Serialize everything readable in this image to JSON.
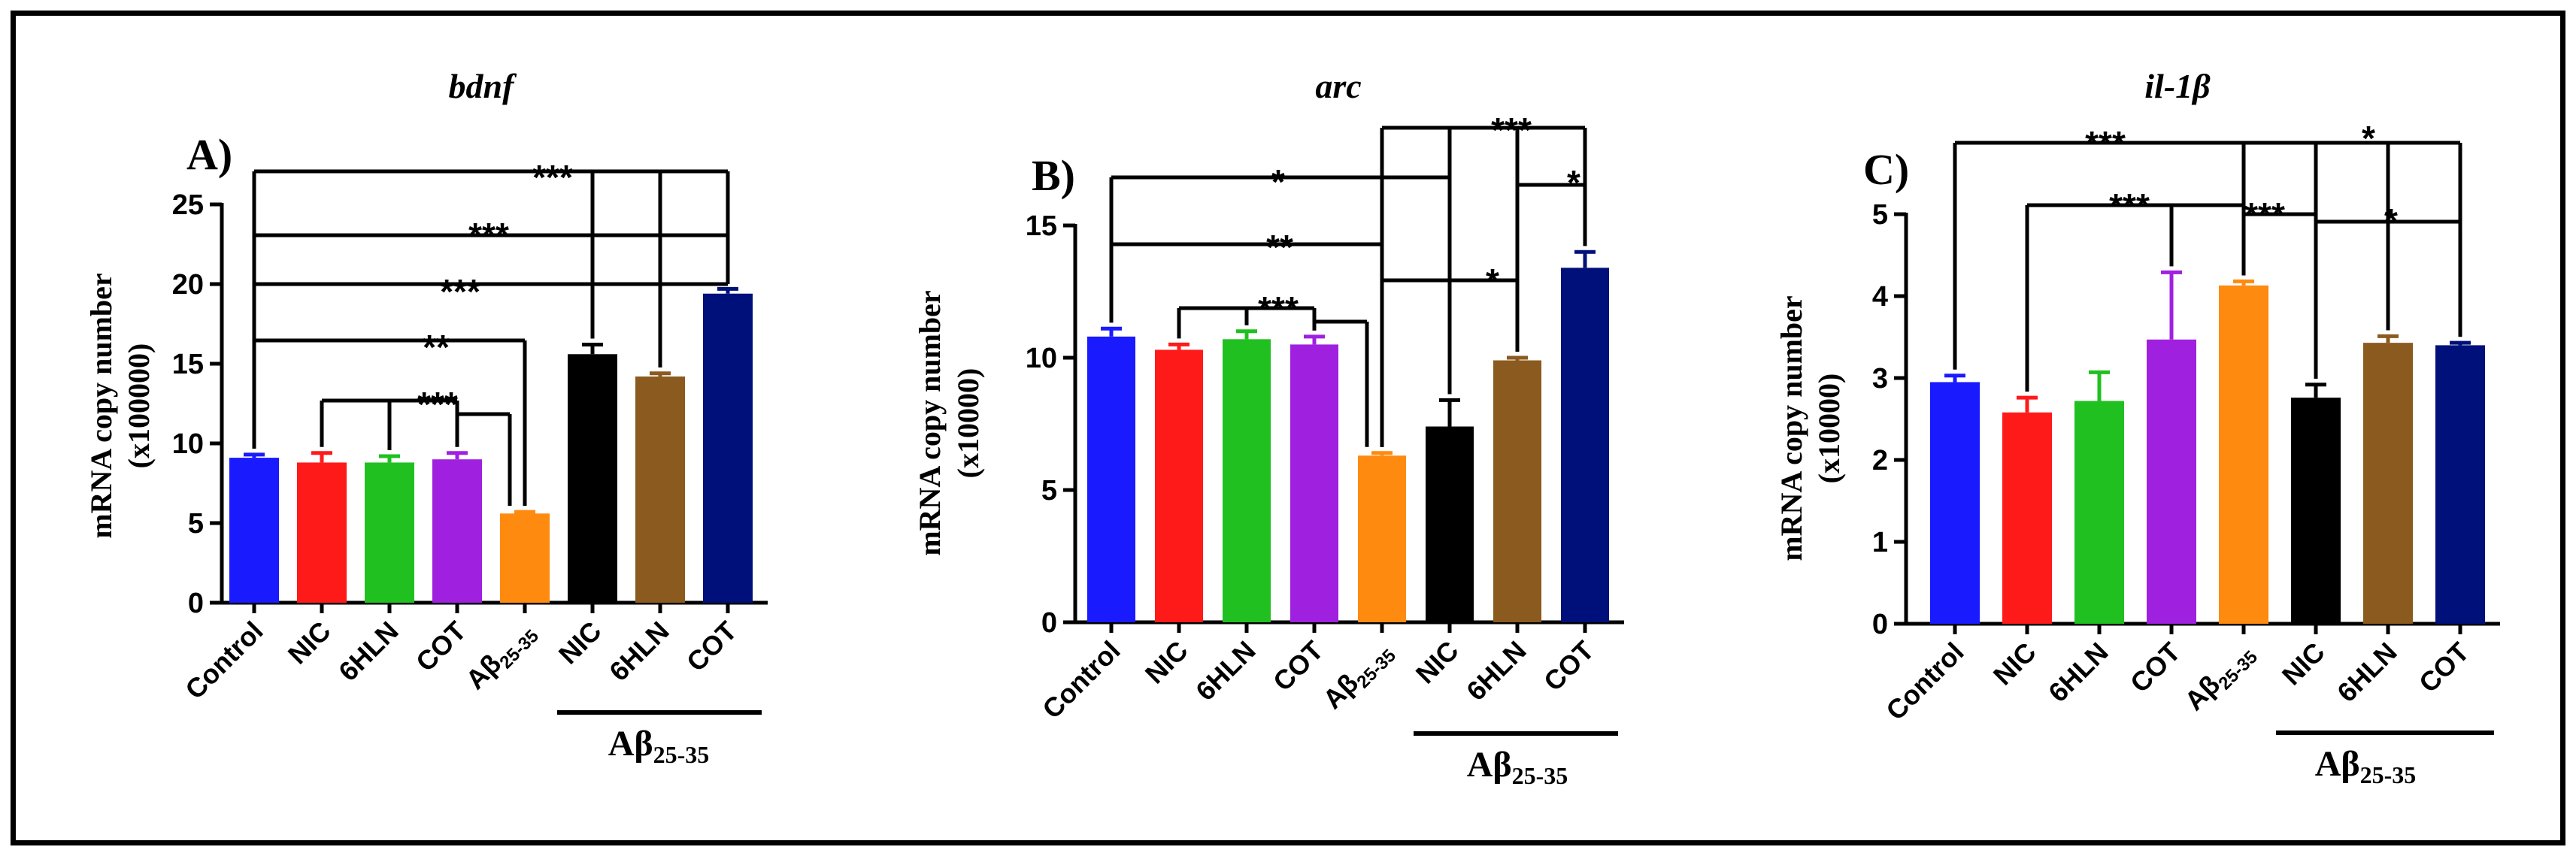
{
  "figure": {
    "palette": [
      "#1a1aff",
      "#ff1a1a",
      "#20c020",
      "#a020e0",
      "#ff8a10",
      "#000000",
      "#8b5a1e",
      "#00107a"
    ],
    "group_label": {
      "main": "Aβ",
      "sub": "25-35"
    },
    "categories": [
      "Control",
      "NIC",
      "6HLN",
      "COT",
      "Aβ25-35",
      "NIC",
      "6HLN",
      "COT"
    ]
  },
  "chart_data": [
    {
      "type": "bar",
      "panel_label": "A)",
      "title": "bdnf",
      "ylabel": "mRNA copy number",
      "ylabel2": "(x100000)",
      "ylim": [
        0,
        25
      ],
      "yticks": [
        0,
        5,
        10,
        15,
        20,
        25
      ],
      "values": [
        9.1,
        8.8,
        8.8,
        9.0,
        5.6,
        15.6,
        14.2,
        19.4
      ],
      "errors": [
        0.2,
        0.6,
        0.4,
        0.4,
        0.1,
        0.6,
        0.2,
        0.3
      ],
      "significance": [
        {
          "label": "***"
        },
        {
          "label": "***"
        },
        {
          "label": "***"
        },
        {
          "label": "**"
        },
        {
          "label": "***"
        }
      ]
    },
    {
      "type": "bar",
      "panel_label": "B)",
      "title": "arc",
      "ylabel": "mRNA copy number",
      "ylabel2": "(x10000)",
      "ylim": [
        0,
        15
      ],
      "yticks": [
        0,
        5,
        10,
        15
      ],
      "values": [
        10.8,
        10.3,
        10.7,
        10.5,
        6.3,
        7.4,
        9.9,
        13.4
      ],
      "errors": [
        0.3,
        0.2,
        0.3,
        0.3,
        0.1,
        1.0,
        0.1,
        0.6
      ],
      "significance": [
        {
          "label": "*"
        },
        {
          "label": "**"
        },
        {
          "label": "***"
        },
        {
          "label": "***"
        },
        {
          "label": "*"
        },
        {
          "label": "*"
        }
      ]
    },
    {
      "type": "bar",
      "panel_label": "C)",
      "title": "il-1β",
      "ylabel": "mRNA copy number",
      "ylabel2": "(x10000)",
      "ylim": [
        0,
        5
      ],
      "yticks": [
        0,
        1,
        2,
        3,
        4,
        5
      ],
      "values": [
        2.95,
        2.58,
        2.72,
        3.47,
        4.13,
        2.76,
        3.43,
        3.4
      ],
      "errors": [
        0.08,
        0.18,
        0.35,
        0.82,
        0.05,
        0.16,
        0.08,
        0.03
      ],
      "significance": [
        {
          "label": "***"
        },
        {
          "label": "***"
        },
        {
          "label": "*"
        },
        {
          "label": "***"
        },
        {
          "label": "*"
        }
      ]
    }
  ]
}
